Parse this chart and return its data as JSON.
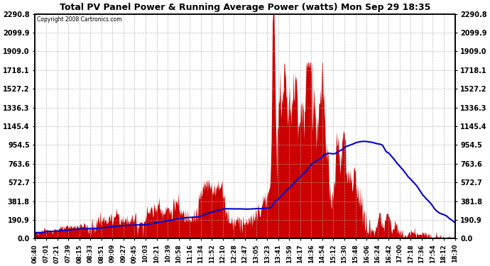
{
  "title": "Total PV Panel Power & Running Average Power (watts) Mon Sep 29 18:35",
  "copyright": "Copyright 2008 Cartronics.com",
  "background_color": "#ffffff",
  "plot_bg_color": "#ffffff",
  "grid_color": "#aaaaaa",
  "fill_color": "#cc0000",
  "line_color": "#0000cc",
  "ymin": 0.0,
  "ymax": 2290.8,
  "yticks": [
    0.0,
    190.9,
    381.8,
    572.7,
    763.6,
    954.5,
    1145.4,
    1336.3,
    1527.2,
    1718.1,
    1909.0,
    2099.9,
    2290.8
  ],
  "xtick_labels": [
    "06:40",
    "07:01",
    "07:21",
    "07:39",
    "08:15",
    "08:33",
    "08:51",
    "09:09",
    "09:27",
    "09:45",
    "10:03",
    "10:21",
    "10:39",
    "10:58",
    "11:16",
    "11:34",
    "11:52",
    "12:10",
    "12:28",
    "12:47",
    "13:05",
    "13:23",
    "13:41",
    "13:59",
    "14:17",
    "14:36",
    "14:54",
    "15:12",
    "15:30",
    "15:48",
    "16:06",
    "16:24",
    "16:42",
    "17:00",
    "17:18",
    "17:36",
    "17:54",
    "18:12",
    "18:30"
  ]
}
